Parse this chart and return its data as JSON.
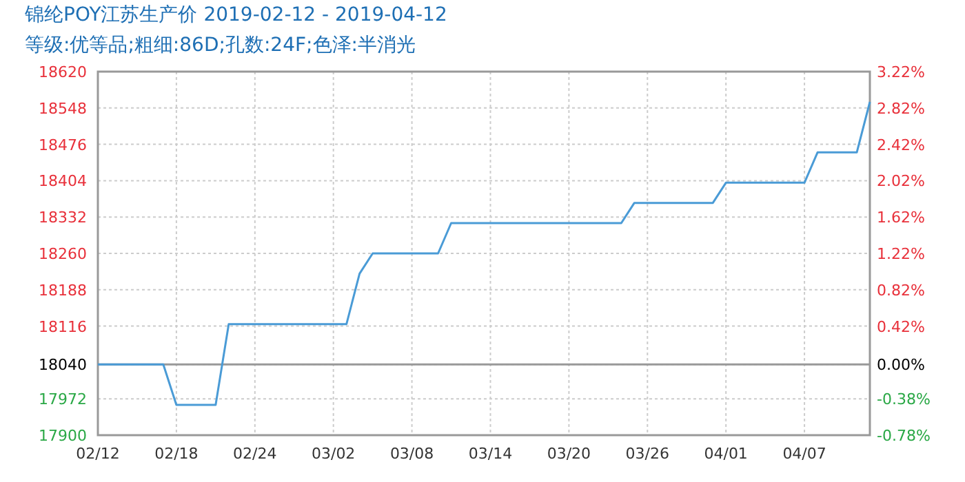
{
  "chart_data": {
    "type": "line",
    "title": "锦纶POY江苏生产价 2019-02-12 - 2019-04-12",
    "subtitle": "等级:优等品;粗细:86D;孔数:24F;色泽:半消光",
    "series": [
      {
        "color": "#4a9bd6",
        "x": [
          "2019-02-12",
          "2019-02-17",
          "2019-02-18",
          "2019-02-21",
          "2019-02-22",
          "2019-03-03",
          "2019-03-04",
          "2019-03-05",
          "2019-03-10",
          "2019-03-11",
          "2019-03-24",
          "2019-03-25",
          "2019-03-31",
          "2019-04-01",
          "2019-04-07",
          "2019-04-08",
          "2019-04-11",
          "2019-04-12"
        ],
        "values": [
          18040,
          18040,
          17960,
          17960,
          18120,
          18120,
          18220,
          18260,
          18260,
          18320,
          18320,
          18360,
          18360,
          18400,
          18400,
          18460,
          18460,
          18560
        ]
      }
    ],
    "xlim": [
      "2019-02-12",
      "2019-04-12"
    ],
    "xticks": [
      {
        "value": "2019-02-12",
        "label": "02/12"
      },
      {
        "value": "2019-02-18",
        "label": "02/18"
      },
      {
        "value": "2019-02-24",
        "label": "02/24"
      },
      {
        "value": "2019-03-02",
        "label": "03/02"
      },
      {
        "value": "2019-03-08",
        "label": "03/08"
      },
      {
        "value": "2019-03-14",
        "label": "03/14"
      },
      {
        "value": "2019-03-20",
        "label": "03/20"
      },
      {
        "value": "2019-03-26",
        "label": "03/26"
      },
      {
        "value": "2019-04-01",
        "label": "04/01"
      },
      {
        "value": "2019-04-07",
        "label": "04/07"
      }
    ],
    "ylim": [
      17900,
      18620
    ],
    "yticks": [
      17900,
      17972,
      18040,
      18116,
      18188,
      18260,
      18332,
      18404,
      18476,
      18548,
      18620
    ],
    "y2lim": [
      -0.776,
      3.215
    ],
    "y2ticks": [
      {
        "value": -0.776,
        "label": "-0.78%"
      },
      {
        "value": -0.377,
        "label": "-0.38%"
      },
      {
        "value": 0,
        "label": "0.00%"
      },
      {
        "value": 0.421,
        "label": "0.42%"
      },
      {
        "value": 0.82,
        "label": "0.82%"
      },
      {
        "value": 1.22,
        "label": "1.22%"
      },
      {
        "value": 1.619,
        "label": "1.62%"
      },
      {
        "value": 2.018,
        "label": "2.02%"
      },
      {
        "value": 2.417,
        "label": "2.42%"
      },
      {
        "value": 2.816,
        "label": "2.82%"
      },
      {
        "value": 3.215,
        "label": "3.22%"
      }
    ],
    "ref_lines": [
      {
        "axis": "y",
        "value": 18040,
        "color": "#999999"
      }
    ],
    "grid": true,
    "marker": "none",
    "line_style": "solid"
  }
}
